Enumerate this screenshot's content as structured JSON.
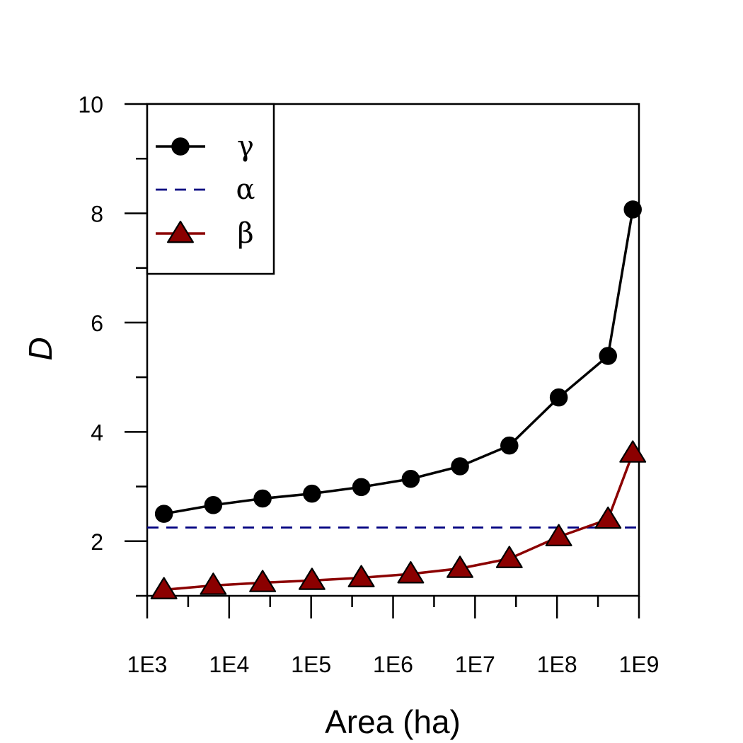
{
  "chart_data": {
    "type": "line",
    "xlabel": "Area (ha)",
    "ylabel": "D",
    "x_scale": "log",
    "x_range": [
      1000,
      1000000000
    ],
    "ylim": [
      1,
      10
    ],
    "x_tick_values": [
      1000,
      10000,
      100000,
      1000000,
      10000000,
      100000000,
      1000000000
    ],
    "x_tick_labels": [
      "1E3",
      "1E4",
      "1E5",
      "1E6",
      "1E7",
      "1E8",
      "1E9"
    ],
    "y_ticks": [
      2,
      4,
      6,
      8,
      10
    ],
    "legend_position": "top-left",
    "grid": false,
    "series": [
      {
        "name": "γ",
        "color": "#000000",
        "marker": "circle",
        "line": "solid",
        "x": [
          1600,
          6400,
          25600,
          102400,
          409600,
          1640000,
          6550000,
          26200000,
          105000000,
          419000000,
          840000000
        ],
        "y": [
          2.5,
          2.66,
          2.78,
          2.87,
          2.99,
          3.14,
          3.37,
          3.75,
          4.63,
          5.39,
          8.07
        ]
      },
      {
        "name": "α",
        "color": "#000080",
        "marker": "none",
        "line": "dashed",
        "x": [
          1000,
          1000000000
        ],
        "y": [
          2.25,
          2.25
        ]
      },
      {
        "name": "β",
        "color": "#8B0000",
        "marker": "triangle",
        "line": "solid",
        "x": [
          1600,
          6400,
          25600,
          102400,
          409600,
          1640000,
          6550000,
          26200000,
          105000000,
          419000000,
          840000000
        ],
        "y": [
          1.11,
          1.19,
          1.24,
          1.28,
          1.33,
          1.4,
          1.5,
          1.68,
          2.08,
          2.4,
          3.61
        ]
      }
    ]
  }
}
